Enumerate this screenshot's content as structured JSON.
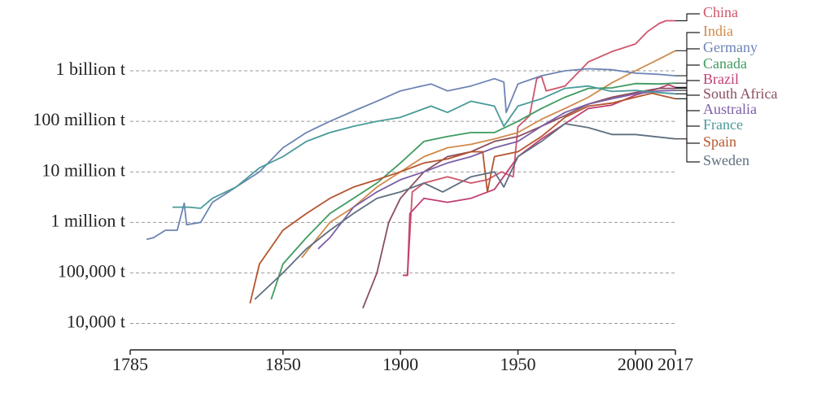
{
  "chart_data": {
    "type": "line",
    "xlim": [
      1785,
      2017
    ],
    "xticks": [
      1785,
      1850,
      1900,
      1950,
      2000,
      2017
    ],
    "ylim": [
      3000,
      15000000000
    ],
    "log_scale": true,
    "grid": true,
    "yticks": [
      {
        "value": 10000,
        "label": "10,000 t"
      },
      {
        "value": 100000,
        "label": "100,000 t"
      },
      {
        "value": 1000000,
        "label": "1 million t"
      },
      {
        "value": 10000000,
        "label": "10 million t"
      },
      {
        "value": 100000000,
        "label": "100 million t"
      },
      {
        "value": 1000000000,
        "label": "1 billion t"
      }
    ],
    "series": [
      {
        "name": "China",
        "color": "#d0546b",
        "x": [
          1902,
          1903,
          1905,
          1910,
          1920,
          1930,
          1937,
          1943,
          1948,
          1950,
          1955,
          1958,
          1960,
          1962,
          1970,
          1980,
          1990,
          2000,
          2005,
          2010,
          2013,
          2017
        ],
        "values": [
          90000,
          90000,
          4000000,
          6000000,
          8000000,
          6000000,
          7000000,
          10000000,
          8000000,
          78000000,
          130000000,
          700000000,
          780000000,
          400000000,
          500000000,
          1500000000,
          2400000000,
          3400000000,
          5900000000,
          8600000000,
          9800000000,
          9800000000
        ]
      },
      {
        "name": "India",
        "color": "#d08a4a",
        "x": [
          1858,
          1870,
          1880,
          1890,
          1900,
          1910,
          1920,
          1930,
          1940,
          1950,
          1960,
          1970,
          1980,
          1990,
          2000,
          2010,
          2017
        ],
        "values": [
          200000,
          1000000,
          2000000,
          5000000,
          10000000,
          20000000,
          30000000,
          35000000,
          45000000,
          60000000,
          110000000,
          180000000,
          300000000,
          580000000,
          1000000000,
          1700000000,
          2500000000
        ]
      },
      {
        "name": "Germany",
        "color": "#6d84b4",
        "x": [
          1792,
          1795,
          1800,
          1805,
          1808,
          1809,
          1815,
          1820,
          1825,
          1830,
          1840,
          1850,
          1860,
          1870,
          1880,
          1890,
          1900,
          1913,
          1920,
          1930,
          1940,
          1944,
          1945,
          1950,
          1960,
          1970,
          1980,
          1990,
          2000,
          2010,
          2017
        ],
        "values": [
          460000,
          500000,
          700000,
          700000,
          2400000,
          900000,
          1000000,
          2500000,
          3500000,
          5000000,
          10000000,
          30000000,
          60000000,
          100000000,
          160000000,
          250000000,
          400000000,
          550000000,
          400000000,
          500000000,
          700000000,
          600000000,
          150000000,
          550000000,
          800000000,
          1000000000,
          1100000000,
          1050000000,
          900000000,
          850000000,
          800000000
        ]
      },
      {
        "name": "Canada",
        "color": "#3f9b5f",
        "x": [
          1845,
          1850,
          1860,
          1870,
          1880,
          1890,
          1900,
          1910,
          1920,
          1930,
          1940,
          1950,
          1960,
          1970,
          1980,
          1990,
          2000,
          2010,
          2017
        ],
        "values": [
          30000,
          150000,
          500000,
          1500000,
          3000000,
          6000000,
          15000000,
          40000000,
          50000000,
          60000000,
          60000000,
          100000000,
          180000000,
          300000000,
          450000000,
          460000000,
          560000000,
          550000000,
          570000000
        ]
      },
      {
        "name": "Brazil",
        "color": "#c13e74",
        "x": [
          1901,
          1903,
          1904,
          1910,
          1920,
          1930,
          1940,
          1950,
          1960,
          1970,
          1980,
          1990,
          2000,
          2010,
          2014,
          2017
        ],
        "values": [
          90000,
          90000,
          1500000,
          3000000,
          2500000,
          3000000,
          4500000,
          20000000,
          45000000,
          90000000,
          180000000,
          210000000,
          330000000,
          450000000,
          530000000,
          470000000
        ]
      },
      {
        "name": "South Africa",
        "color": "#8a4e5e",
        "x": [
          1884,
          1890,
          1895,
          1900,
          1910,
          1920,
          1930,
          1940,
          1950,
          1960,
          1970,
          1980,
          1990,
          2000,
          2010,
          2017
        ],
        "values": [
          20000,
          100000,
          1000000,
          3000000,
          10000000,
          20000000,
          25000000,
          40000000,
          50000000,
          80000000,
          130000000,
          220000000,
          300000000,
          370000000,
          450000000,
          450000000
        ]
      },
      {
        "name": "Australia",
        "color": "#7b5ea7",
        "x": [
          1865,
          1870,
          1880,
          1890,
          1900,
          1910,
          1920,
          1930,
          1940,
          1950,
          1960,
          1970,
          1980,
          1990,
          2000,
          2010,
          2017
        ],
        "values": [
          300000,
          500000,
          2000000,
          4000000,
          7000000,
          10000000,
          15000000,
          20000000,
          30000000,
          40000000,
          80000000,
          150000000,
          220000000,
          280000000,
          350000000,
          400000000,
          410000000
        ]
      },
      {
        "name": "France",
        "color": "#4a9a9a",
        "x": [
          1803,
          1810,
          1815,
          1820,
          1830,
          1840,
          1850,
          1860,
          1870,
          1880,
          1890,
          1900,
          1913,
          1920,
          1930,
          1940,
          1944,
          1950,
          1960,
          1970,
          1980,
          1990,
          2000,
          2010,
          2017
        ],
        "values": [
          2000000,
          2000000,
          1900000,
          3000000,
          5000000,
          12000000,
          20000000,
          40000000,
          60000000,
          80000000,
          100000000,
          120000000,
          200000000,
          150000000,
          250000000,
          200000000,
          80000000,
          200000000,
          280000000,
          450000000,
          500000000,
          390000000,
          410000000,
          370000000,
          350000000
        ]
      },
      {
        "name": "Spain",
        "color": "#b5552e",
        "x": [
          1836,
          1840,
          1850,
          1860,
          1870,
          1880,
          1890,
          1900,
          1910,
          1920,
          1930,
          1935,
          1937,
          1940,
          1950,
          1960,
          1970,
          1980,
          1990,
          2000,
          2007,
          2017
        ],
        "values": [
          25000,
          150000,
          700000,
          1500000,
          3000000,
          5000000,
          7000000,
          10000000,
          15000000,
          18000000,
          25000000,
          25000000,
          4000000,
          20000000,
          25000000,
          50000000,
          120000000,
          200000000,
          230000000,
          300000000,
          360000000,
          280000000
        ]
      },
      {
        "name": "Sweden",
        "color": "#5f6f80",
        "x": [
          1838,
          1850,
          1860,
          1870,
          1880,
          1890,
          1900,
          1910,
          1918,
          1930,
          1940,
          1944,
          1950,
          1960,
          1970,
          1980,
          1990,
          2000,
          2017
        ],
        "values": [
          30000,
          100000,
          300000,
          700000,
          1500000,
          3000000,
          4000000,
          6000000,
          4000000,
          8000000,
          10000000,
          5000000,
          20000000,
          40000000,
          90000000,
          75000000,
          55000000,
          55000000,
          45000000
        ]
      }
    ]
  }
}
